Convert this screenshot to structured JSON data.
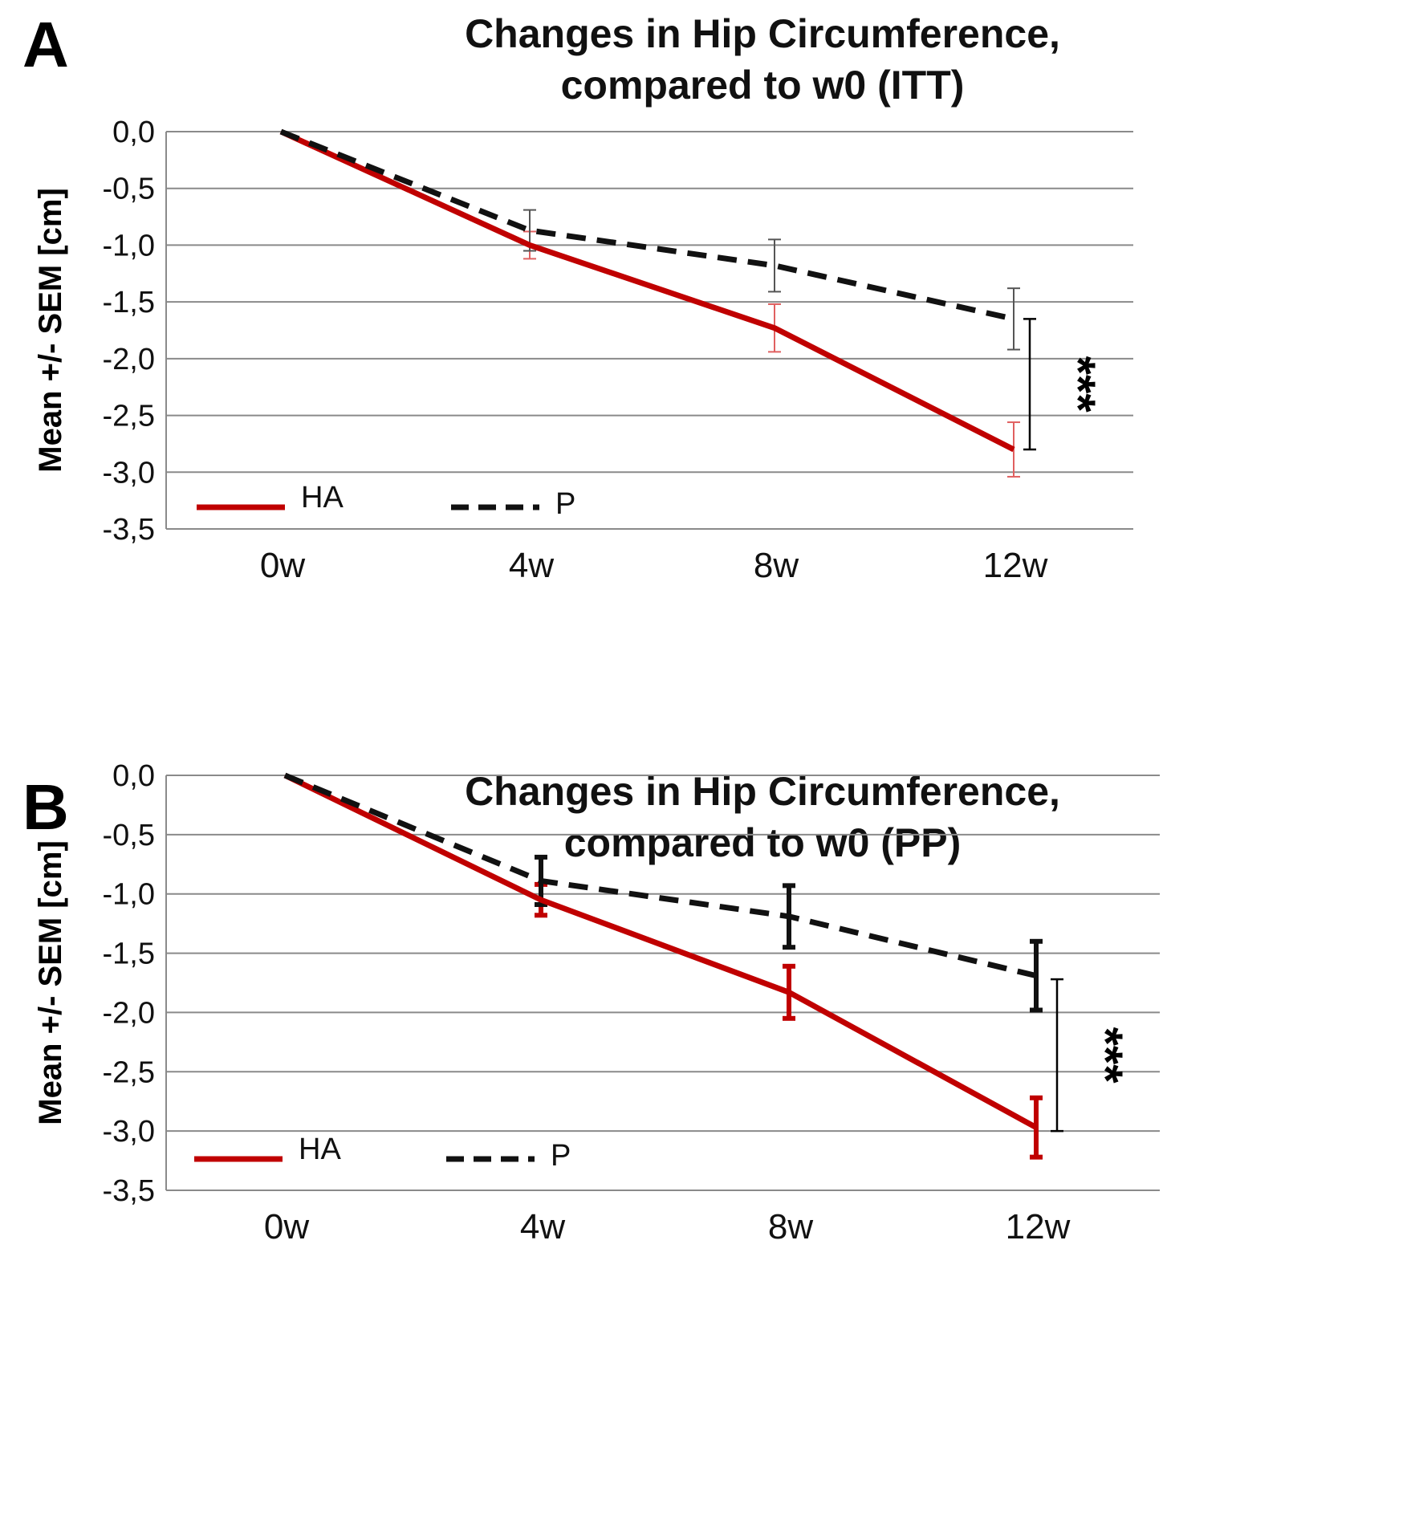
{
  "chart_data": [
    {
      "panel": "A",
      "type": "line",
      "title": "Changes in Hip Circumference,",
      "subtitle": "compared to w0 (ITT)",
      "xlabel": "",
      "ylabel": "Mean +/- SEM [cm]",
      "categories": [
        "0w",
        "4w",
        "8w",
        "12w"
      ],
      "yticks": [
        "0,0",
        "-0,5",
        "-1,0",
        "-1,5",
        "-2,0",
        "-2,5",
        "-3,0",
        "-3,5"
      ],
      "ylim": [
        -3.5,
        0.0
      ],
      "grid": true,
      "legend": "bottom-left",
      "series": [
        {
          "name": "HA",
          "style": "solid",
          "color": "#c00000",
          "errcolor": "#e06060",
          "values": [
            0.0,
            -1.0,
            -1.73,
            -2.8
          ],
          "sem": [
            0,
            0.12,
            0.21,
            0.24
          ]
        },
        {
          "name": "P",
          "style": "dashed",
          "color": "#111111",
          "errcolor": "#555555",
          "values": [
            0.0,
            -0.87,
            -1.18,
            -1.65
          ],
          "sem": [
            0,
            0.18,
            0.23,
            0.27
          ]
        }
      ],
      "significance": {
        "text": "***",
        "from": -1.65,
        "to": -2.8
      }
    },
    {
      "panel": "B",
      "type": "line",
      "title": "Changes in Hip Circumference,",
      "subtitle": "compared to w0 (PP)",
      "xlabel": "",
      "ylabel": "Mean +/- SEM [cm]",
      "categories": [
        "0w",
        "4w",
        "8w",
        "12w"
      ],
      "yticks": [
        "0,0",
        "-0,5",
        "-1,0",
        "-1,5",
        "-2,0",
        "-2,5",
        "-3,0",
        "-3,5"
      ],
      "ylim": [
        -3.5,
        0.0
      ],
      "grid": true,
      "legend": "bottom-left",
      "series": [
        {
          "name": "HA",
          "style": "solid",
          "color": "#c00000",
          "errcolor": "#c00000",
          "values": [
            0.0,
            -1.05,
            -1.83,
            -2.97
          ],
          "sem": [
            0,
            0.13,
            0.22,
            0.25
          ]
        },
        {
          "name": "P",
          "style": "dashed",
          "color": "#111111",
          "errcolor": "#111111",
          "values": [
            0.0,
            -0.89,
            -1.19,
            -1.69
          ],
          "sem": [
            0,
            0.2,
            0.26,
            0.29
          ]
        }
      ],
      "significance": {
        "text": "***",
        "from": -1.72,
        "to": -3.0
      }
    }
  ]
}
